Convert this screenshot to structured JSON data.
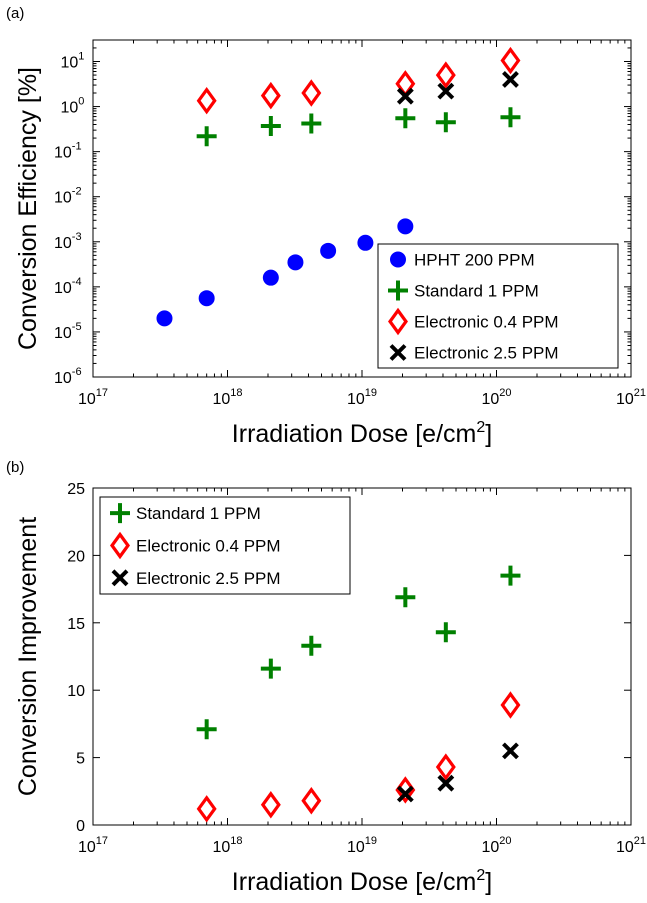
{
  "colors": {
    "hpht": "#0000ff",
    "standard": "#008000",
    "electronic_04": "#ff0000",
    "electronic_25": "#000000"
  },
  "chart_data": [
    {
      "type": "scatter",
      "panel_label": "(a)",
      "xlabel": "Irradiation Dose [e/cm",
      "xlabel_sup": "2",
      "xlabel_end": "]",
      "ylabel": "Conversion Efficiency [%]",
      "x_scale": "log",
      "y_scale": "log",
      "xlim": [
        1e+17,
        1e+21
      ],
      "ylim": [
        1e-06,
        30
      ],
      "x_ticks": [
        {
          "base": "10",
          "exp": "17"
        },
        {
          "base": "10",
          "exp": "18"
        },
        {
          "base": "10",
          "exp": "19"
        },
        {
          "base": "10",
          "exp": "20"
        },
        {
          "base": "10",
          "exp": "21"
        }
      ],
      "y_ticks": [
        {
          "base": "10",
          "exp": "-6"
        },
        {
          "base": "10",
          "exp": "-5"
        },
        {
          "base": "10",
          "exp": "-4"
        },
        {
          "base": "10",
          "exp": "-3"
        },
        {
          "base": "10",
          "exp": "-2"
        },
        {
          "base": "10",
          "exp": "-1"
        },
        {
          "base": "10",
          "exp": "0"
        },
        {
          "base": "10",
          "exp": "1"
        }
      ],
      "grid": false,
      "legend_position": "bottom-right",
      "series": [
        {
          "name": "HPHT 200 PPM",
          "marker": "circle",
          "color": "#0000ff",
          "x": [
            3.4e+17,
            7e+17,
            2.1e+18,
            3.2e+18,
            5.6e+18,
            1.06e+19,
            2.1e+19
          ],
          "y": [
            2e-05,
            5.6e-05,
            0.00016,
            0.00035,
            0.00063,
            0.00095,
            0.0022
          ]
        },
        {
          "name": "Standard 1 PPM",
          "marker": "plus",
          "color": "#008000",
          "x": [
            7e+17,
            2.1e+18,
            4.2e+18,
            2.1e+19,
            4.2e+19,
            1.27e+20
          ],
          "y": [
            0.22,
            0.37,
            0.42,
            0.55,
            0.45,
            0.58
          ]
        },
        {
          "name": "Electronic 0.4 PPM",
          "marker": "diamond",
          "color": "#ff0000",
          "x": [
            7e+17,
            2.1e+18,
            4.2e+18,
            2.1e+19,
            4.2e+19,
            1.27e+20
          ],
          "y": [
            1.35,
            1.75,
            2.0,
            3.2,
            5.0,
            10.5
          ]
        },
        {
          "name": "Electronic 2.5 PPM",
          "marker": "cross",
          "color": "#000000",
          "x": [
            2.1e+19,
            4.2e+19,
            1.27e+20
          ],
          "y": [
            1.7,
            2.2,
            4.0
          ]
        }
      ]
    },
    {
      "type": "scatter",
      "panel_label": "(b)",
      "xlabel": "Irradiation Dose [e/cm",
      "xlabel_sup": "2",
      "xlabel_end": "]",
      "ylabel": "Conversion Improvement",
      "x_scale": "log",
      "y_scale": "linear",
      "xlim": [
        1e+17,
        1e+21
      ],
      "ylim": [
        0,
        25
      ],
      "x_ticks": [
        {
          "base": "10",
          "exp": "17"
        },
        {
          "base": "10",
          "exp": "18"
        },
        {
          "base": "10",
          "exp": "19"
        },
        {
          "base": "10",
          "exp": "20"
        },
        {
          "base": "10",
          "exp": "21"
        }
      ],
      "y_ticks": [
        "0",
        "5",
        "10",
        "15",
        "20",
        "25"
      ],
      "grid": false,
      "legend_position": "top-left",
      "series": [
        {
          "name": "Standard 1 PPM",
          "marker": "plus",
          "color": "#008000",
          "x": [
            7e+17,
            2.1e+18,
            4.2e+18,
            2.1e+19,
            4.2e+19,
            1.27e+20
          ],
          "y": [
            7.1,
            11.6,
            13.3,
            16.9,
            14.3,
            18.5
          ]
        },
        {
          "name": "Electronic 0.4 PPM",
          "marker": "diamond",
          "color": "#ff0000",
          "x": [
            7e+17,
            2.1e+18,
            4.2e+18,
            2.1e+19,
            4.2e+19,
            1.27e+20
          ],
          "y": [
            1.2,
            1.5,
            1.8,
            2.6,
            4.3,
            8.9
          ]
        },
        {
          "name": "Electronic 2.5 PPM",
          "marker": "cross",
          "color": "#000000",
          "x": [
            2.1e+19,
            4.2e+19,
            1.27e+20
          ],
          "y": [
            2.3,
            3.1,
            5.5
          ]
        }
      ]
    }
  ]
}
